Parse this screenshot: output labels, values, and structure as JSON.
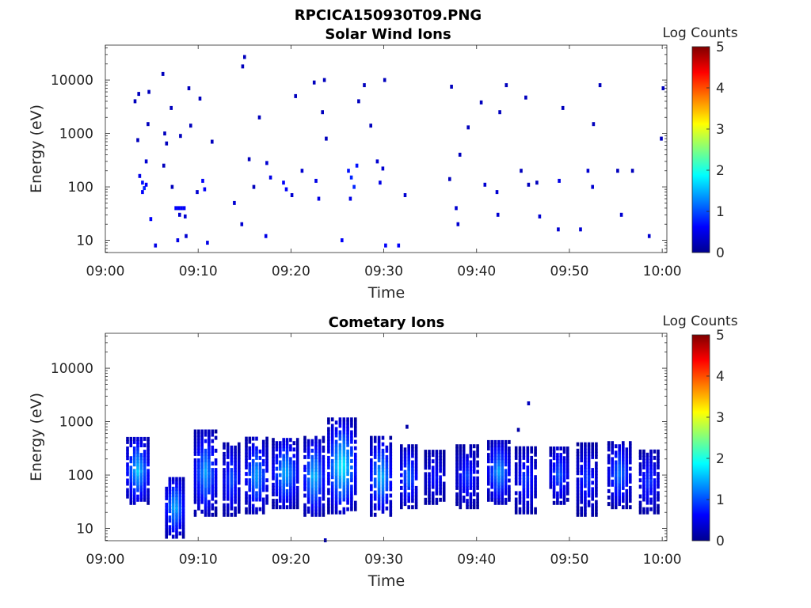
{
  "figure": {
    "title": "RPCICA150930T09.PNG"
  },
  "chart_data": [
    {
      "type": "heatmap",
      "title": "Solar Wind Ions",
      "xlabel": "Time",
      "ylabel": "Energy (eV)",
      "x_ticks": [
        "09:00",
        "09:10",
        "09:20",
        "09:30",
        "09:40",
        "09:50",
        "10:00"
      ],
      "x_range_minutes": [
        0,
        60.5
      ],
      "y_scale": "log",
      "y_ticks": [
        "10",
        "100",
        "1000",
        "10000"
      ],
      "y_range": [
        5.9,
        45000
      ],
      "colorbar": {
        "title": "Log Counts",
        "ticks": [
          "0",
          "1",
          "2",
          "3",
          "4",
          "5"
        ],
        "range": [
          0,
          5
        ],
        "colormap": "jet"
      },
      "bins": [
        {
          "t": 3.7,
          "e": 160,
          "v": 0.5
        },
        {
          "t": 4.0,
          "e": 120,
          "v": 0.7
        },
        {
          "t": 4.2,
          "e": 95,
          "v": 0.8
        },
        {
          "t": 4.0,
          "e": 80,
          "v": 0.6
        },
        {
          "t": 4.4,
          "e": 110,
          "v": 0.6
        },
        {
          "t": 4.4,
          "e": 300,
          "v": 0.4
        },
        {
          "t": 3.2,
          "e": 4000,
          "v": 0.3
        },
        {
          "t": 3.6,
          "e": 5500,
          "v": 0.3
        },
        {
          "t": 4.7,
          "e": 6000,
          "v": 0.3
        },
        {
          "t": 4.6,
          "e": 1500,
          "v": 0.3
        },
        {
          "t": 3.5,
          "e": 750,
          "v": 0.3
        },
        {
          "t": 4.9,
          "e": 25,
          "v": 0.6
        },
        {
          "t": 5.4,
          "e": 8,
          "v": 0.5
        },
        {
          "t": 6.2,
          "e": 13000,
          "v": 0.3
        },
        {
          "t": 6.4,
          "e": 1000,
          "v": 0.3
        },
        {
          "t": 6.3,
          "e": 250,
          "v": 0.3
        },
        {
          "t": 6.6,
          "e": 650,
          "v": 0.3
        },
        {
          "t": 7.1,
          "e": 3000,
          "v": 0.3
        },
        {
          "t": 7.2,
          "e": 100,
          "v": 0.3
        },
        {
          "t": 7.6,
          "e": 40,
          "v": 0.6
        },
        {
          "t": 7.9,
          "e": 40,
          "v": 0.6
        },
        {
          "t": 8.2,
          "e": 40,
          "v": 0.6
        },
        {
          "t": 8.5,
          "e": 40,
          "v": 0.6
        },
        {
          "t": 8.0,
          "e": 30,
          "v": 0.4
        },
        {
          "t": 8.6,
          "e": 28,
          "v": 0.4
        },
        {
          "t": 7.8,
          "e": 10,
          "v": 0.5
        },
        {
          "t": 8.7,
          "e": 12,
          "v": 0.4
        },
        {
          "t": 8.1,
          "e": 900,
          "v": 0.3
        },
        {
          "t": 9.0,
          "e": 7000,
          "v": 0.3
        },
        {
          "t": 9.2,
          "e": 1400,
          "v": 0.3
        },
        {
          "t": 9.9,
          "e": 80,
          "v": 0.4
        },
        {
          "t": 10.5,
          "e": 130,
          "v": 0.6
        },
        {
          "t": 10.7,
          "e": 90,
          "v": 0.6
        },
        {
          "t": 11.0,
          "e": 9,
          "v": 0.5
        },
        {
          "t": 10.2,
          "e": 4500,
          "v": 0.3
        },
        {
          "t": 11.5,
          "e": 700,
          "v": 0.3
        },
        {
          "t": 13.9,
          "e": 50,
          "v": 0.4
        },
        {
          "t": 14.7,
          "e": 20,
          "v": 0.4
        },
        {
          "t": 15.0,
          "e": 27000,
          "v": 0.3
        },
        {
          "t": 14.8,
          "e": 18000,
          "v": 0.3
        },
        {
          "t": 15.5,
          "e": 330,
          "v": 0.3
        },
        {
          "t": 16.0,
          "e": 100,
          "v": 0.3
        },
        {
          "t": 16.6,
          "e": 2000,
          "v": 0.3
        },
        {
          "t": 17.4,
          "e": 280,
          "v": 0.4
        },
        {
          "t": 17.8,
          "e": 150,
          "v": 0.5
        },
        {
          "t": 17.3,
          "e": 12,
          "v": 0.5
        },
        {
          "t": 19.2,
          "e": 120,
          "v": 0.6
        },
        {
          "t": 19.5,
          "e": 90,
          "v": 0.6
        },
        {
          "t": 20.1,
          "e": 70,
          "v": 0.4
        },
        {
          "t": 20.5,
          "e": 5000,
          "v": 0.3
        },
        {
          "t": 21.2,
          "e": 200,
          "v": 0.4
        },
        {
          "t": 22.7,
          "e": 130,
          "v": 0.5
        },
        {
          "t": 23.0,
          "e": 60,
          "v": 0.5
        },
        {
          "t": 22.5,
          "e": 9000,
          "v": 0.3
        },
        {
          "t": 23.4,
          "e": 2500,
          "v": 0.3
        },
        {
          "t": 23.8,
          "e": 800,
          "v": 0.3
        },
        {
          "t": 23.6,
          "e": 10000,
          "v": 0.3
        },
        {
          "t": 25.5,
          "e": 10,
          "v": 0.6
        },
        {
          "t": 26.2,
          "e": 200,
          "v": 0.7
        },
        {
          "t": 26.5,
          "e": 150,
          "v": 0.8
        },
        {
          "t": 26.8,
          "e": 100,
          "v": 0.8
        },
        {
          "t": 27.1,
          "e": 250,
          "v": 0.7
        },
        {
          "t": 26.4,
          "e": 60,
          "v": 0.5
        },
        {
          "t": 27.3,
          "e": 4000,
          "v": 0.3
        },
        {
          "t": 27.9,
          "e": 8000,
          "v": 0.3
        },
        {
          "t": 28.6,
          "e": 1400,
          "v": 0.3
        },
        {
          "t": 29.3,
          "e": 300,
          "v": 0.4
        },
        {
          "t": 29.6,
          "e": 120,
          "v": 0.5
        },
        {
          "t": 29.9,
          "e": 220,
          "v": 0.4
        },
        {
          "t": 30.1,
          "e": 10000,
          "v": 0.3
        },
        {
          "t": 30.2,
          "e": 8,
          "v": 0.6
        },
        {
          "t": 31.6,
          "e": 8,
          "v": 0.6
        },
        {
          "t": 32.3,
          "e": 70,
          "v": 0.4
        },
        {
          "t": 37.3,
          "e": 7500,
          "v": 0.3
        },
        {
          "t": 37.1,
          "e": 140,
          "v": 0.3
        },
        {
          "t": 37.8,
          "e": 40,
          "v": 0.4
        },
        {
          "t": 38.0,
          "e": 20,
          "v": 0.4
        },
        {
          "t": 38.2,
          "e": 400,
          "v": 0.3
        },
        {
          "t": 39.1,
          "e": 1300,
          "v": 0.3
        },
        {
          "t": 40.5,
          "e": 3800,
          "v": 0.3
        },
        {
          "t": 40.9,
          "e": 110,
          "v": 0.4
        },
        {
          "t": 42.2,
          "e": 80,
          "v": 0.4
        },
        {
          "t": 42.3,
          "e": 30,
          "v": 0.4
        },
        {
          "t": 42.5,
          "e": 2500,
          "v": 0.3
        },
        {
          "t": 43.2,
          "e": 8000,
          "v": 0.3
        },
        {
          "t": 44.8,
          "e": 200,
          "v": 0.3
        },
        {
          "t": 45.3,
          "e": 4700,
          "v": 0.3
        },
        {
          "t": 45.6,
          "e": 110,
          "v": 0.3
        },
        {
          "t": 46.5,
          "e": 120,
          "v": 0.3
        },
        {
          "t": 46.8,
          "e": 28,
          "v": 0.4
        },
        {
          "t": 48.9,
          "e": 130,
          "v": 0.5
        },
        {
          "t": 48.8,
          "e": 16,
          "v": 0.4
        },
        {
          "t": 49.3,
          "e": 3000,
          "v": 0.3
        },
        {
          "t": 51.2,
          "e": 16,
          "v": 0.4
        },
        {
          "t": 52.0,
          "e": 200,
          "v": 0.4
        },
        {
          "t": 52.5,
          "e": 100,
          "v": 0.4
        },
        {
          "t": 52.6,
          "e": 1500,
          "v": 0.3
        },
        {
          "t": 53.3,
          "e": 8000,
          "v": 0.3
        },
        {
          "t": 55.2,
          "e": 200,
          "v": 0.3
        },
        {
          "t": 55.6,
          "e": 30,
          "v": 0.4
        },
        {
          "t": 56.8,
          "e": 200,
          "v": 0.3
        },
        {
          "t": 58.6,
          "e": 12,
          "v": 0.4
        },
        {
          "t": 59.9,
          "e": 800,
          "v": 0.3
        },
        {
          "t": 60.1,
          "e": 7000,
          "v": 0.3
        }
      ]
    },
    {
      "type": "heatmap",
      "title": "Cometary Ions",
      "xlabel": "Time",
      "ylabel": "Energy (eV)",
      "x_ticks": [
        "09:00",
        "09:10",
        "09:20",
        "09:30",
        "09:40",
        "09:50",
        "10:00"
      ],
      "x_range_minutes": [
        0,
        60.5
      ],
      "y_scale": "log",
      "y_ticks": [
        "10",
        "100",
        "1000",
        "10000"
      ],
      "y_range": [
        5.9,
        45000
      ],
      "colorbar": {
        "title": "Log Counts",
        "ticks": [
          "0",
          "1",
          "2",
          "3",
          "4",
          "5"
        ],
        "range": [
          0,
          5
        ],
        "colormap": "jet"
      },
      "bursts": [
        {
          "t": 3.5,
          "w": 2.6,
          "e_lo": 30,
          "e_hi": 500,
          "peak": 1.6
        },
        {
          "t": 7.5,
          "w": 2.2,
          "e_lo": 7,
          "e_hi": 90,
          "peak": 1.5
        },
        {
          "t": 10.8,
          "w": 2.6,
          "e_lo": 18,
          "e_hi": 700,
          "peak": 1.4
        },
        {
          "t": 13.6,
          "w": 2.0,
          "e_lo": 18,
          "e_hi": 400,
          "peak": 1.0
        },
        {
          "t": 16.3,
          "w": 2.6,
          "e_lo": 20,
          "e_hi": 500,
          "peak": 1.4
        },
        {
          "t": 19.4,
          "w": 3.0,
          "e_lo": 25,
          "e_hi": 500,
          "peak": 1.5
        },
        {
          "t": 22.5,
          "w": 2.4,
          "e_lo": 18,
          "e_hi": 500,
          "peak": 1.6
        },
        {
          "t": 25.5,
          "w": 3.3,
          "e_lo": 20,
          "e_hi": 1100,
          "peak": 1.9
        },
        {
          "t": 29.7,
          "w": 2.5,
          "e_lo": 18,
          "e_hi": 500,
          "peak": 1.6
        },
        {
          "t": 32.7,
          "w": 2.0,
          "e_lo": 25,
          "e_hi": 350,
          "peak": 1.2
        },
        {
          "t": 35.5,
          "w": 2.4,
          "e_lo": 30,
          "e_hi": 300,
          "peak": 0.7
        },
        {
          "t": 39.0,
          "w": 2.6,
          "e_lo": 25,
          "e_hi": 350,
          "peak": 0.9
        },
        {
          "t": 42.4,
          "w": 2.6,
          "e_lo": 30,
          "e_hi": 450,
          "peak": 1.4
        },
        {
          "t": 45.3,
          "w": 2.5,
          "e_lo": 20,
          "e_hi": 350,
          "peak": 0.9
        },
        {
          "t": 48.9,
          "w": 2.2,
          "e_lo": 30,
          "e_hi": 350,
          "peak": 1.1
        },
        {
          "t": 51.9,
          "w": 2.4,
          "e_lo": 18,
          "e_hi": 400,
          "peak": 0.9
        },
        {
          "t": 55.4,
          "w": 2.7,
          "e_lo": 25,
          "e_hi": 450,
          "peak": 1.2
        },
        {
          "t": 58.6,
          "w": 2.3,
          "e_lo": 20,
          "e_hi": 300,
          "peak": 0.9
        }
      ],
      "bins": [
        {
          "t": 45.6,
          "e": 2200,
          "v": 0.3
        },
        {
          "t": 44.5,
          "e": 700,
          "v": 0.2
        },
        {
          "t": 32.5,
          "e": 800,
          "v": 0.2
        },
        {
          "t": 23.7,
          "e": 6,
          "v": 0.3
        }
      ]
    }
  ]
}
